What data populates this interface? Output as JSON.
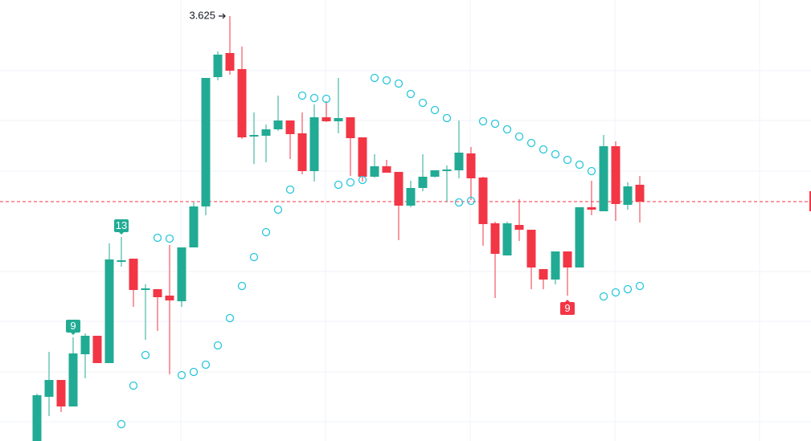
{
  "chart_data": {
    "type": "candlestick",
    "ylim": [
      3.3605,
      3.635
    ],
    "up_color": "#22ab94",
    "down_color": "#f23645",
    "open": [
      3.3605,
      3.388,
      3.3985,
      3.382,
      3.4145,
      3.426,
      3.409,
      3.472,
      3.474,
      3.4545,
      3.455,
      3.451,
      3.4475,
      3.481,
      3.5065,
      3.587,
      3.602,
      3.592,
      3.55,
      3.5505,
      3.5545,
      3.56,
      3.552,
      3.5285,
      3.562,
      3.5595,
      3.562,
      3.5495,
      3.525,
      3.5315,
      3.528,
      3.507,
      3.518,
      3.525,
      3.5285,
      3.529,
      3.5395,
      3.5245,
      3.496,
      3.476,
      3.495,
      3.492,
      3.4675,
      3.461,
      3.4785,
      3.4685,
      3.506,
      3.5035,
      3.544,
      3.5075,
      3.52
    ],
    "high": [
      3.39,
      3.416,
      3.3985,
      3.425,
      3.4275,
      3.426,
      3.4835,
      3.4875,
      3.474,
      3.458,
      3.455,
      3.4825,
      3.481,
      3.509,
      3.5865,
      3.603,
      3.625,
      3.606,
      3.565,
      3.5575,
      3.5755,
      3.56,
      3.565,
      3.57,
      3.572,
      3.5865,
      3.562,
      3.5495,
      3.539,
      3.5355,
      3.528,
      3.5225,
      3.539,
      3.529,
      3.532,
      3.56,
      3.5435,
      3.525,
      3.497,
      3.497,
      3.511,
      3.492,
      3.4675,
      3.4785,
      3.4785,
      3.506,
      3.5225,
      3.551,
      3.547,
      3.5215,
      3.5255
    ],
    "low": [
      3.3605,
      3.376,
      3.3785,
      3.382,
      3.3995,
      3.409,
      3.409,
      3.469,
      3.444,
      3.4235,
      3.429,
      3.402,
      3.444,
      3.481,
      3.501,
      3.585,
      3.5885,
      3.5485,
      3.533,
      3.534,
      3.5535,
      3.536,
      3.5265,
      3.522,
      3.559,
      3.552,
      3.5255,
      3.522,
      3.5245,
      3.5275,
      3.4855,
      3.506,
      3.516,
      3.5245,
      3.5095,
      3.524,
      3.5105,
      3.482,
      3.4495,
      3.476,
      3.485,
      3.455,
      3.455,
      3.458,
      3.451,
      3.4685,
      3.501,
      3.5035,
      3.4975,
      3.5045,
      3.4965
    ],
    "close": [
      3.389,
      3.3985,
      3.382,
      3.415,
      3.426,
      3.409,
      3.4735,
      3.473,
      3.4545,
      3.4555,
      3.45,
      3.448,
      3.481,
      3.5065,
      3.5865,
      3.601,
      3.591,
      3.5495,
      3.551,
      3.5545,
      3.56,
      3.5515,
      3.5285,
      3.562,
      3.5595,
      3.5615,
      3.549,
      3.525,
      3.5315,
      3.5275,
      3.507,
      3.518,
      3.525,
      3.529,
      3.5295,
      3.54,
      3.524,
      3.4955,
      3.477,
      3.496,
      3.492,
      3.4685,
      3.461,
      3.4785,
      3.4685,
      3.506,
      3.5045,
      3.544,
      3.508,
      3.519,
      3.5095
    ],
    "sar": {
      "color": "#26c6da",
      "values": [
        null,
        null,
        null,
        null,
        null,
        null,
        null,
        3.371,
        3.395,
        3.414,
        3.487,
        3.4865,
        3.4015,
        3.4035,
        3.408,
        3.42,
        3.437,
        3.457,
        3.475,
        3.4905,
        3.5045,
        3.517,
        3.5755,
        3.574,
        3.5735,
        3.52,
        3.5215,
        3.523,
        3.5865,
        3.585,
        3.583,
        3.5765,
        3.571,
        3.5665,
        3.5615,
        3.509,
        3.51,
        3.5595,
        3.558,
        3.5545,
        3.55,
        3.546,
        3.542,
        3.539,
        3.5355,
        3.5325,
        3.5285,
        3.4505,
        3.453,
        3.455,
        3.457
      ]
    },
    "up_counts": [
      null,
      null,
      null,
      9,
      null,
      null,
      null,
      13,
      null,
      null,
      null,
      null,
      null,
      null,
      null,
      null,
      null,
      null,
      null,
      null,
      null,
      null,
      null,
      null,
      null,
      null,
      null,
      null,
      null,
      null,
      null,
      null,
      null,
      null,
      null,
      null,
      null,
      null,
      null,
      null,
      null,
      null,
      null,
      null,
      null,
      null,
      null,
      null,
      null,
      null,
      null
    ],
    "down_counts": [
      null,
      null,
      null,
      null,
      null,
      null,
      null,
      null,
      null,
      null,
      null,
      null,
      null,
      null,
      null,
      null,
      null,
      null,
      null,
      null,
      null,
      null,
      null,
      null,
      null,
      null,
      null,
      null,
      null,
      null,
      null,
      null,
      null,
      null,
      null,
      null,
      null,
      null,
      null,
      null,
      null,
      null,
      null,
      null,
      9,
      null,
      null,
      null,
      null,
      null,
      null
    ],
    "high_label_index": 16
  }
}
